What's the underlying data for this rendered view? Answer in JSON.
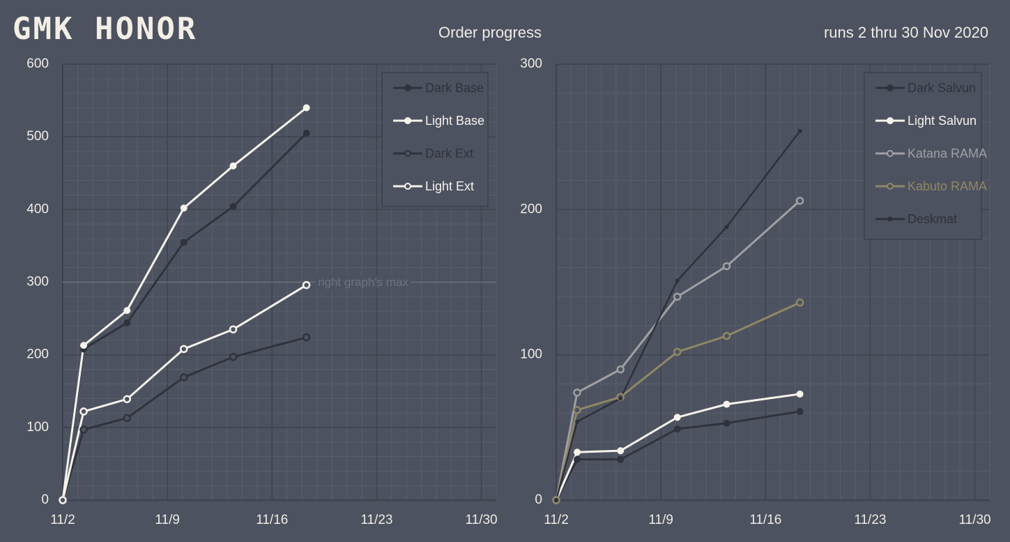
{
  "header": {
    "logo": "GMK HONOR",
    "title": "Order progress",
    "subtitle": "runs 2 thru 30 Nov 2020"
  },
  "chart_data": [
    {
      "type": "line",
      "xlim": [
        2,
        31
      ],
      "xticks": [
        {
          "value": 2,
          "label": "11/2"
        },
        {
          "value": 9,
          "label": "11/9"
        },
        {
          "value": 16,
          "label": "11/16"
        },
        {
          "value": 23,
          "label": "11/23"
        },
        {
          "value": 30,
          "label": "11/30"
        }
      ],
      "ylim": [
        0,
        600
      ],
      "yticks": [
        0,
        100,
        200,
        300,
        400,
        500,
        600
      ],
      "grid": true,
      "legend": "top-right",
      "x": [
        2,
        3.4,
        6.3,
        10.1,
        13.4,
        18.3
      ],
      "annotation": {
        "text": "right graph's max",
        "value": 300
      },
      "series": [
        {
          "name": "Dark Base",
          "color": "#30333d",
          "marker": "filled",
          "values": [
            0,
            208,
            244,
            355,
            404,
            505
          ]
        },
        {
          "name": "Light Base",
          "color": "#f6f3ec",
          "marker": "filled",
          "values": [
            0,
            213,
            261,
            402,
            460,
            540
          ]
        },
        {
          "name": "Dark Ext",
          "color": "#30333d",
          "marker": "hollow",
          "values": [
            0,
            97,
            113,
            169,
            197,
            224
          ]
        },
        {
          "name": "Light Ext",
          "color": "#f6f3ec",
          "marker": "hollow",
          "values": [
            0,
            122,
            139,
            208,
            235,
            296
          ]
        }
      ]
    },
    {
      "type": "line",
      "xlim": [
        2,
        31
      ],
      "xticks": [
        {
          "value": 2,
          "label": "11/2"
        },
        {
          "value": 9,
          "label": "11/9"
        },
        {
          "value": 16,
          "label": "11/16"
        },
        {
          "value": 23,
          "label": "11/23"
        },
        {
          "value": 30,
          "label": "11/30"
        }
      ],
      "ylim": [
        0,
        300
      ],
      "yticks": [
        0,
        100,
        200,
        300
      ],
      "grid": true,
      "legend": "top-right",
      "x": [
        2,
        3.4,
        6.3,
        10.1,
        13.4,
        18.3
      ],
      "series": [
        {
          "name": "Dark Salvun",
          "color": "#30333d",
          "marker": "filled",
          "values": [
            0,
            28,
            28,
            49,
            53,
            61
          ]
        },
        {
          "name": "Light Salvun",
          "color": "#f6f3ec",
          "marker": "filled",
          "values": [
            0,
            33,
            34,
            57,
            66,
            73
          ]
        },
        {
          "name": "Katana RAMA",
          "color": "#a0a0a4",
          "marker": "hollow",
          "values": [
            0,
            74,
            90,
            140,
            161,
            206
          ]
        },
        {
          "name": "Kabuto RAMA",
          "color": "#8f8766",
          "marker": "hollow",
          "values": [
            0,
            62,
            71,
            102,
            113,
            136
          ]
        },
        {
          "name": "Deskmat",
          "color": "#2e313b",
          "marker": "dot",
          "values": [
            0,
            54,
            70,
            151,
            188,
            254
          ]
        }
      ]
    }
  ]
}
